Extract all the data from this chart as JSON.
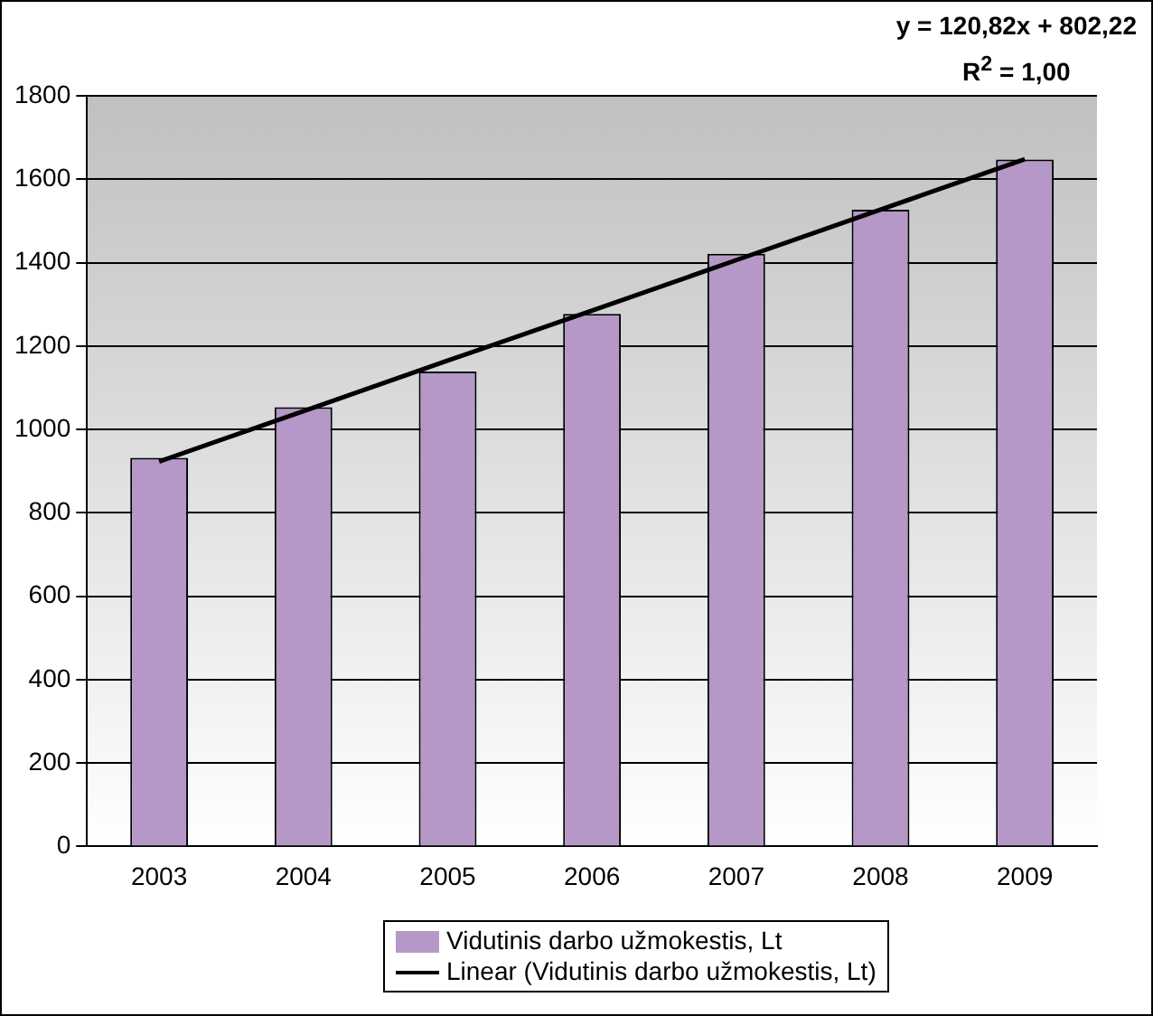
{
  "chart_data": {
    "type": "bar",
    "categories": [
      "2003",
      "2004",
      "2005",
      "2006",
      "2007",
      "2008",
      "2009"
    ],
    "series": [
      {
        "name": "Vidutinis darbo užmokestis, Lt",
        "color": "#b598c8",
        "values": [
          932,
          1053,
          1139,
          1277,
          1421,
          1527,
          1647
        ]
      },
      {
        "name": "Linear (Vidutinis darbo užmokestis, Lt)",
        "type": "line",
        "color": "#000000",
        "values": [
          923,
          1044,
          1165,
          1285,
          1406,
          1527,
          1648
        ]
      }
    ],
    "ylim": [
      0,
      1800
    ],
    "yticks": [
      0,
      200,
      400,
      600,
      800,
      1000,
      1200,
      1400,
      1600,
      1800
    ],
    "grid": "y",
    "legend": "bottom",
    "marker": "none",
    "annotations": [
      "y = 120,82x + 802,22",
      "R$^{2}$ = 1,00"
    ]
  }
}
